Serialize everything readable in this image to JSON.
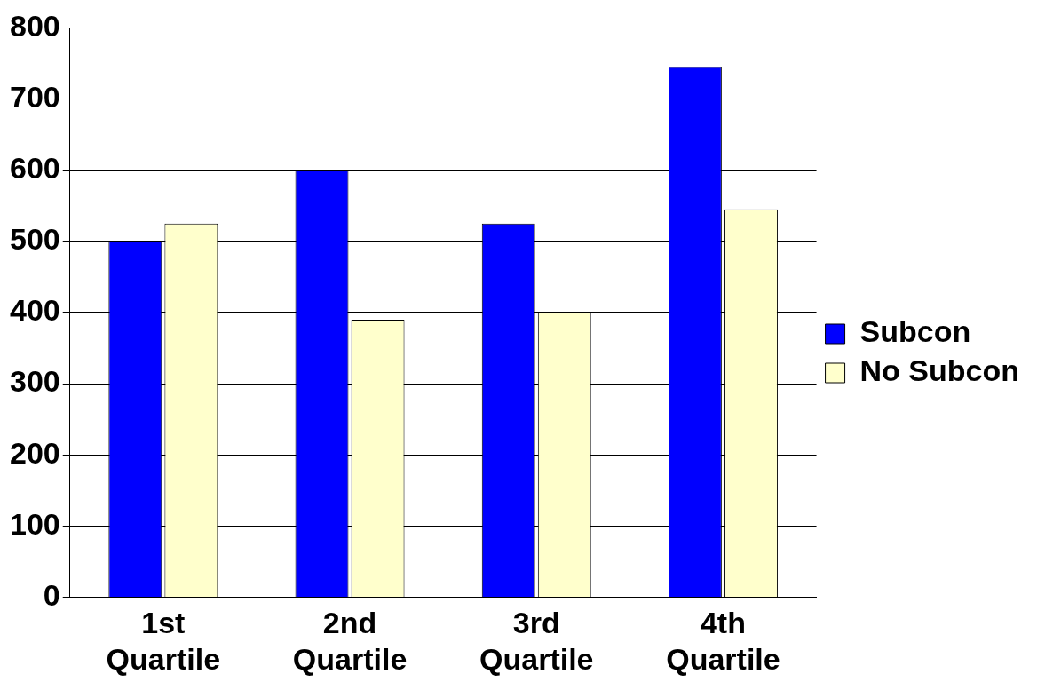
{
  "chart_data": {
    "type": "bar",
    "categories": [
      "1st Quartile",
      "2nd Quartile",
      "3rd Quartile",
      "4th Quartile"
    ],
    "series": [
      {
        "name": "Subcon",
        "color": "#0000ff",
        "values": [
          500,
          600,
          525,
          745
        ]
      },
      {
        "name": "No Subcon",
        "color": "#ffffcc",
        "values": [
          525,
          390,
          400,
          545
        ]
      }
    ],
    "ylim": [
      0,
      800
    ],
    "yticks": [
      0,
      100,
      200,
      300,
      400,
      500,
      600,
      700,
      800
    ],
    "grid": "y",
    "legend": "right"
  }
}
